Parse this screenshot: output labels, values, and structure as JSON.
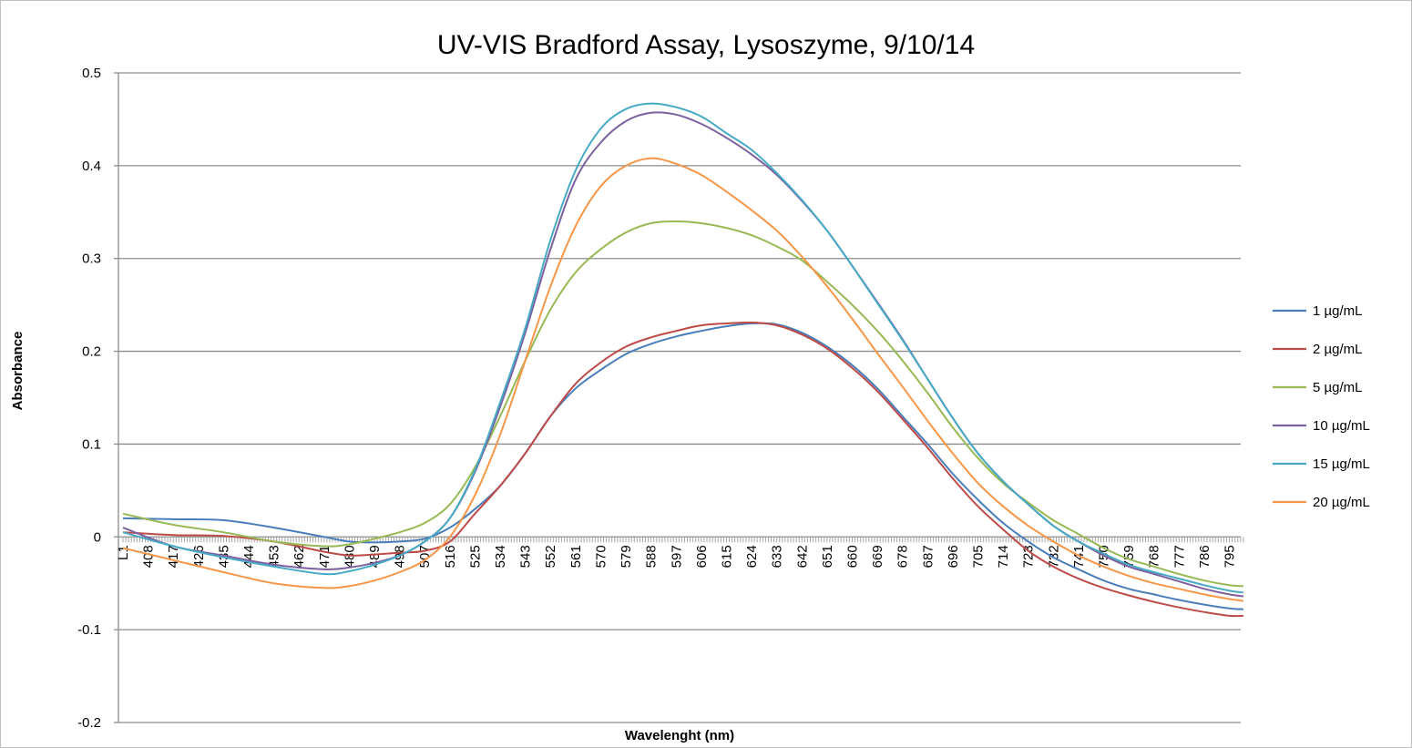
{
  "chart_data": {
    "type": "line",
    "title": "UV-VIS Bradford Assay, Lysoszyme, 9/10/14",
    "xlabel": "Wavelenght (nm)",
    "ylabel": "Absorbance",
    "ylim": [
      -0.2,
      0.5
    ],
    "yticks": [
      "0.5",
      "0.4",
      "0.3",
      "0.2",
      "0.1",
      "0",
      "-0.1",
      "-0.2"
    ],
    "ytick_values": [
      0.5,
      0.4,
      0.3,
      0.2,
      0.1,
      0,
      -0.1,
      -0.2
    ],
    "xlim": [
      399,
      800
    ],
    "xtick_labels": [
      "L1",
      "408",
      "417",
      "426",
      "435",
      "444",
      "453",
      "462",
      "471",
      "480",
      "489",
      "498",
      "507",
      "516",
      "525",
      "534",
      "543",
      "552",
      "561",
      "570",
      "579",
      "588",
      "597",
      "606",
      "615",
      "624",
      "633",
      "642",
      "651",
      "660",
      "669",
      "678",
      "687",
      "696",
      "705",
      "714",
      "723",
      "732",
      "741",
      "750",
      "759",
      "768",
      "777",
      "786",
      "795"
    ],
    "grid": true,
    "legend_position": "right",
    "x": [
      399,
      417,
      435,
      453,
      471,
      480,
      489,
      498,
      507,
      516,
      525,
      534,
      543,
      552,
      561,
      570,
      579,
      588,
      597,
      606,
      615,
      624,
      633,
      642,
      651,
      660,
      669,
      678,
      687,
      696,
      705,
      714,
      723,
      732,
      741,
      750,
      759,
      768,
      777,
      786,
      795,
      800
    ],
    "series": [
      {
        "name": "1 µg/mL",
        "color": "#4a7ebb",
        "values": [
          0.02,
          0.019,
          0.018,
          0.01,
          0.0,
          -0.005,
          -0.006,
          -0.005,
          -0.002,
          0.01,
          0.03,
          0.055,
          0.09,
          0.13,
          0.16,
          0.18,
          0.197,
          0.208,
          0.216,
          0.222,
          0.227,
          0.23,
          0.229,
          0.22,
          0.205,
          0.185,
          0.16,
          0.13,
          0.1,
          0.068,
          0.04,
          0.015,
          -0.005,
          -0.022,
          -0.035,
          -0.047,
          -0.056,
          -0.062,
          -0.068,
          -0.073,
          -0.077,
          -0.078
        ]
      },
      {
        "name": "2 µg/mL",
        "color": "#be4b48",
        "values": [
          0.005,
          0.002,
          0.001,
          -0.005,
          -0.016,
          -0.02,
          -0.019,
          -0.017,
          -0.015,
          -0.005,
          0.025,
          0.055,
          0.09,
          0.13,
          0.165,
          0.188,
          0.205,
          0.215,
          0.222,
          0.228,
          0.23,
          0.231,
          0.228,
          0.218,
          0.203,
          0.182,
          0.157,
          0.127,
          0.096,
          0.063,
          0.033,
          0.008,
          -0.015,
          -0.032,
          -0.045,
          -0.055,
          -0.063,
          -0.07,
          -0.076,
          -0.081,
          -0.085,
          -0.085
        ]
      },
      {
        "name": "5 µg/mL",
        "color": "#98b954",
        "values": [
          0.025,
          0.013,
          0.005,
          -0.005,
          -0.01,
          -0.008,
          -0.002,
          0.005,
          0.015,
          0.035,
          0.075,
          0.13,
          0.19,
          0.245,
          0.285,
          0.31,
          0.328,
          0.338,
          0.34,
          0.338,
          0.333,
          0.325,
          0.313,
          0.298,
          0.275,
          0.25,
          0.222,
          0.19,
          0.155,
          0.118,
          0.085,
          0.058,
          0.037,
          0.018,
          0.003,
          -0.012,
          -0.024,
          -0.032,
          -0.04,
          -0.047,
          -0.052,
          -0.053
        ]
      },
      {
        "name": "10 µg/mL",
        "color": "#7d60a0",
        "values": [
          0.01,
          -0.01,
          -0.02,
          -0.03,
          -0.035,
          -0.033,
          -0.028,
          -0.02,
          -0.005,
          0.02,
          0.07,
          0.14,
          0.22,
          0.31,
          0.385,
          0.425,
          0.448,
          0.457,
          0.455,
          0.445,
          0.43,
          0.412,
          0.39,
          0.362,
          0.33,
          0.292,
          0.253,
          0.213,
          0.17,
          0.128,
          0.09,
          0.06,
          0.035,
          0.012,
          -0.005,
          -0.02,
          -0.032,
          -0.04,
          -0.048,
          -0.056,
          -0.062,
          -0.064
        ]
      },
      {
        "name": "15 µg/mL",
        "color": "#46aac5",
        "values": [
          0.005,
          -0.01,
          -0.022,
          -0.032,
          -0.04,
          -0.037,
          -0.03,
          -0.02,
          -0.005,
          0.02,
          0.072,
          0.145,
          0.225,
          0.32,
          0.395,
          0.44,
          0.461,
          0.467,
          0.463,
          0.453,
          0.435,
          0.417,
          0.392,
          0.363,
          0.33,
          0.292,
          0.252,
          0.212,
          0.17,
          0.128,
          0.09,
          0.06,
          0.035,
          0.012,
          -0.005,
          -0.018,
          -0.03,
          -0.038,
          -0.045,
          -0.052,
          -0.058,
          -0.06
        ]
      },
      {
        "name": "20 µg/mL",
        "color": "#f79646",
        "values": [
          -0.012,
          -0.025,
          -0.038,
          -0.05,
          -0.055,
          -0.053,
          -0.047,
          -0.038,
          -0.025,
          0.0,
          0.045,
          0.11,
          0.19,
          0.27,
          0.335,
          0.378,
          0.4,
          0.408,
          0.402,
          0.39,
          0.372,
          0.352,
          0.33,
          0.302,
          0.27,
          0.235,
          0.198,
          0.162,
          0.125,
          0.09,
          0.058,
          0.033,
          0.012,
          -0.005,
          -0.02,
          -0.032,
          -0.042,
          -0.05,
          -0.056,
          -0.062,
          -0.067,
          -0.069
        ]
      }
    ]
  }
}
